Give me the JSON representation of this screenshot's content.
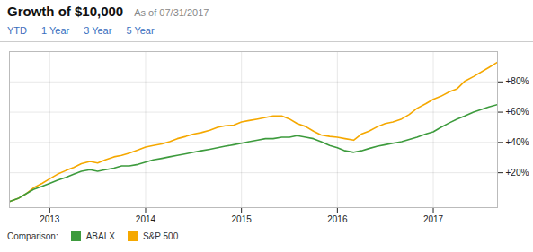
{
  "chart_data": {
    "type": "line",
    "title": "Growth of $10,000",
    "subtitle": "As of 07/31/2017",
    "annotations": [
      "YTD",
      "1 Year",
      "3 Year",
      "5 Year"
    ],
    "legend_title": "Comparison:",
    "x": [
      2012.58,
      2012.67,
      2012.75,
      2012.83,
      2012.92,
      2013.0,
      2013.08,
      2013.17,
      2013.25,
      2013.33,
      2013.42,
      2013.5,
      2013.58,
      2013.67,
      2013.75,
      2013.83,
      2013.92,
      2014.0,
      2014.08,
      2014.17,
      2014.25,
      2014.33,
      2014.42,
      2014.5,
      2014.58,
      2014.67,
      2014.75,
      2014.83,
      2014.92,
      2015.0,
      2015.08,
      2015.17,
      2015.25,
      2015.33,
      2015.42,
      2015.5,
      2015.58,
      2015.67,
      2015.75,
      2015.83,
      2015.92,
      2016.0,
      2016.08,
      2016.17,
      2016.25,
      2016.33,
      2016.42,
      2016.5,
      2016.58,
      2016.67,
      2016.75,
      2016.83,
      2016.92,
      2017.0,
      2017.08,
      2017.17,
      2017.25,
      2017.33,
      2017.42,
      2017.58,
      2017.67
    ],
    "series": [
      {
        "name": "S&P 500",
        "color": "#f5a800",
        "values": [
          0.01,
          0.03,
          0.06,
          0.1,
          0.13,
          0.16,
          0.19,
          0.215,
          0.235,
          0.26,
          0.275,
          0.265,
          0.285,
          0.305,
          0.315,
          0.33,
          0.35,
          0.37,
          0.38,
          0.39,
          0.405,
          0.425,
          0.44,
          0.455,
          0.465,
          0.48,
          0.5,
          0.51,
          0.515,
          0.535,
          0.545,
          0.555,
          0.565,
          0.575,
          0.575,
          0.555,
          0.525,
          0.505,
          0.475,
          0.45,
          0.44,
          0.435,
          0.425,
          0.415,
          0.455,
          0.475,
          0.505,
          0.525,
          0.535,
          0.555,
          0.585,
          0.625,
          0.655,
          0.685,
          0.705,
          0.735,
          0.755,
          0.805,
          0.835,
          0.895,
          0.93
        ]
      },
      {
        "name": "ABALX",
        "color": "#3d9b3d",
        "values": [
          0.01,
          0.03,
          0.06,
          0.09,
          0.11,
          0.13,
          0.15,
          0.17,
          0.19,
          0.21,
          0.22,
          0.21,
          0.22,
          0.23,
          0.245,
          0.245,
          0.255,
          0.27,
          0.285,
          0.295,
          0.305,
          0.315,
          0.325,
          0.335,
          0.345,
          0.355,
          0.365,
          0.375,
          0.385,
          0.395,
          0.405,
          0.415,
          0.425,
          0.425,
          0.435,
          0.435,
          0.445,
          0.435,
          0.425,
          0.405,
          0.38,
          0.365,
          0.345,
          0.335,
          0.345,
          0.36,
          0.375,
          0.385,
          0.395,
          0.405,
          0.42,
          0.435,
          0.455,
          0.47,
          0.5,
          0.53,
          0.555,
          0.575,
          0.6,
          0.635,
          0.65
        ]
      }
    ],
    "xlim": [
      2012.58,
      2017.67
    ],
    "xticks": [
      2013,
      2014,
      2015,
      2016,
      2017
    ],
    "ylim": [
      -0.03,
      1.0
    ],
    "yticks": [
      {
        "value": 0.2,
        "label": "+20%"
      },
      {
        "value": 0.4,
        "label": "+40%"
      },
      {
        "value": 0.6,
        "label": "+60%"
      },
      {
        "value": 0.8,
        "label": "+80%"
      }
    ],
    "grid": true
  }
}
